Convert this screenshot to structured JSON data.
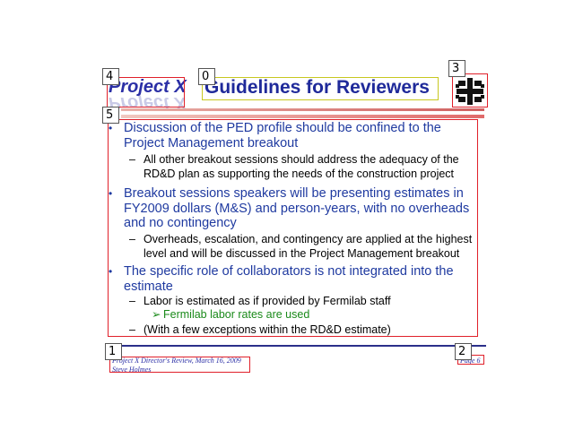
{
  "header": {
    "logo_text": "Project X",
    "title": "Guidelines for Reviewers"
  },
  "content": {
    "items": [
      {
        "text": "Discussion of the PED profile should be confined to the Project Management breakout",
        "sub": [
          "All other breakout sessions should address the adequacy of the RD&D plan as supporting the needs of the construction project"
        ]
      },
      {
        "text": "Breakout sessions speakers will be presenting estimates in FY2009 dollars (M&S) and person-years, with no overheads and no contingency",
        "sub": [
          "Overheads, escalation, and contingency are applied at the highest level and will be discussed in the Project Management breakout"
        ]
      },
      {
        "text": "The specific role of collaborators is not integrated into the estimate",
        "sub": [
          "Labor is estimated as if provided by Fermilab staff",
          "(With a few exceptions within the RD&D estimate)"
        ],
        "subsub": "Fermilab labor rates are used"
      }
    ]
  },
  "footer": {
    "line1": "Project X Director's Review, March 16, 2009",
    "line2": "Steve Holmes",
    "page": "Page 6"
  },
  "annotations": [
    "0",
    "1",
    "2",
    "3",
    "4",
    "5"
  ],
  "colors": {
    "title_blue": "#1f2a9a",
    "body_blue": "#1f3aa0",
    "green": "#1a8a1a",
    "box_red": "#e0202a"
  }
}
